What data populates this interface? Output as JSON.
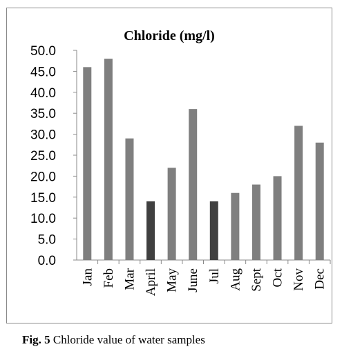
{
  "chart_data": {
    "type": "bar",
    "title": "Chloride (mg/l)",
    "xlabel": "",
    "ylabel": "",
    "ylim": [
      0,
      50
    ],
    "ytick_step": 5,
    "ytick_labels": [
      "0.0",
      "5.0",
      "10.0",
      "15.0",
      "20.0",
      "25.0",
      "30.0",
      "35.0",
      "40.0",
      "45.0",
      "50.0"
    ],
    "grid": false,
    "legend": "none",
    "categories": [
      "Jan",
      "Feb",
      "Mar",
      "April",
      "May",
      "June",
      "Jul",
      "Aug",
      "Sept",
      "Oct",
      "Nov",
      "Dec"
    ],
    "values": [
      46,
      48,
      29,
      14,
      22,
      36,
      14,
      16,
      18,
      20,
      32,
      28
    ],
    "bar_colors": [
      "#7f7f7f",
      "#7f7f7f",
      "#7f7f7f",
      "#404040",
      "#7f7f7f",
      "#7f7f7f",
      "#404040",
      "#7f7f7f",
      "#7f7f7f",
      "#7f7f7f",
      "#7f7f7f",
      "#7f7f7f"
    ]
  },
  "caption": {
    "label": "Fig. 5",
    "text": "Chloride value of water samples"
  }
}
